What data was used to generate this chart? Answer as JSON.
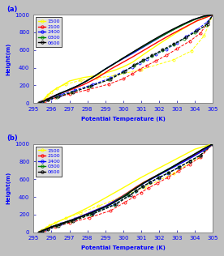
{
  "title_a": "(a)",
  "title_b": "(b)",
  "xlabel": "Potential Temperature (K)",
  "ylabel": "Height(m)",
  "xlim": [
    295,
    305
  ],
  "ylim": [
    0,
    1000
  ],
  "xticks": [
    295,
    296,
    297,
    298,
    299,
    300,
    301,
    302,
    303,
    304,
    305
  ],
  "yticks": [
    0,
    200,
    400,
    600,
    800,
    1000
  ],
  "legend_labels": [
    "1500",
    "2100",
    "2400",
    "0300",
    "0600"
  ],
  "colors": [
    "yellow",
    "red",
    "blue",
    "green",
    "black"
  ],
  "fig_bg": "#c0c0c0",
  "panel_bg": "#ffffff",
  "model_a": {
    "1500": {
      "theta": [
        295.3,
        295.35,
        295.4,
        295.45,
        295.5,
        295.55,
        295.6,
        295.65,
        295.7,
        295.8,
        295.9,
        296.0,
        296.2,
        296.5,
        297.0,
        297.8,
        298.5,
        299.0,
        299.5,
        300.0,
        300.5,
        301.2,
        302.0,
        303.0,
        304.0,
        305.0
      ],
      "height": [
        0,
        5,
        10,
        15,
        20,
        30,
        40,
        55,
        70,
        90,
        110,
        130,
        155,
        190,
        250,
        290,
        310,
        340,
        370,
        410,
        460,
        560,
        670,
        800,
        920,
        1000
      ]
    },
    "2100": {
      "theta": [
        295.3,
        295.4,
        295.5,
        295.7,
        296.0,
        296.5,
        297.2,
        297.8,
        298.3,
        298.7,
        299.0,
        299.3,
        299.7,
        300.1,
        300.5,
        301.0,
        301.5,
        302.0,
        302.7,
        303.4,
        304.1,
        304.8,
        305.0
      ],
      "height": [
        0,
        10,
        20,
        40,
        70,
        110,
        160,
        210,
        260,
        305,
        345,
        385,
        430,
        475,
        520,
        580,
        640,
        700,
        780,
        855,
        930,
        985,
        1000
      ]
    },
    "2400": {
      "theta": [
        295.3,
        295.4,
        295.6,
        295.9,
        296.3,
        296.9,
        297.5,
        298.0,
        298.4,
        298.7,
        299.0,
        299.3,
        299.7,
        300.1,
        300.5,
        301.0,
        301.5,
        302.0,
        302.6,
        303.2,
        303.8,
        304.4,
        305.0
      ],
      "height": [
        0,
        10,
        25,
        55,
        95,
        145,
        200,
        255,
        305,
        345,
        385,
        425,
        470,
        515,
        560,
        620,
        680,
        740,
        810,
        875,
        935,
        975,
        1000
      ]
    },
    "0300": {
      "theta": [
        295.3,
        295.4,
        295.6,
        295.9,
        296.3,
        296.9,
        297.5,
        298.0,
        298.4,
        298.7,
        299.0,
        299.3,
        299.6,
        299.9,
        300.3,
        300.7,
        301.2,
        301.7,
        302.3,
        302.9,
        303.5,
        304.1,
        304.7,
        305.0
      ],
      "height": [
        0,
        10,
        25,
        55,
        95,
        145,
        200,
        255,
        305,
        345,
        385,
        420,
        460,
        500,
        545,
        595,
        650,
        710,
        775,
        840,
        900,
        955,
        990,
        1000
      ]
    },
    "0600": {
      "theta": [
        295.3,
        295.4,
        295.6,
        295.9,
        296.3,
        296.9,
        297.5,
        298.0,
        298.4,
        298.7,
        299.0,
        299.3,
        299.6,
        299.9,
        300.2,
        300.6,
        301.0,
        301.5,
        302.1,
        302.7,
        303.3,
        303.9,
        304.5,
        305.0
      ],
      "height": [
        0,
        10,
        25,
        55,
        95,
        145,
        200,
        255,
        305,
        345,
        385,
        420,
        458,
        496,
        536,
        585,
        635,
        695,
        765,
        830,
        890,
        945,
        985,
        1000
      ]
    }
  },
  "obs_a": {
    "1500": {
      "theta": [
        295.3,
        295.35,
        295.4,
        295.45,
        295.5,
        295.55,
        295.6,
        295.7,
        295.8,
        296.0,
        296.3,
        296.8,
        297.6,
        298.5,
        299.5,
        301.0,
        302.8,
        303.8,
        304.5,
        305.0
      ],
      "height": [
        0,
        5,
        10,
        15,
        20,
        30,
        45,
        65,
        90,
        125,
        170,
        215,
        255,
        285,
        310,
        380,
        490,
        590,
        760,
        1000
      ]
    },
    "2100": {
      "theta": [
        295.3,
        295.4,
        295.5,
        295.6,
        295.8,
        296.2,
        297.0,
        298.0,
        299.2,
        300.0,
        300.5,
        300.9,
        301.3,
        301.8,
        302.4,
        303.0,
        303.7,
        304.3,
        305.0
      ],
      "height": [
        0,
        8,
        15,
        25,
        40,
        65,
        100,
        150,
        215,
        275,
        330,
        380,
        425,
        475,
        540,
        615,
        700,
        790,
        1000
      ]
    },
    "2400": {
      "theta": [
        295.3,
        295.4,
        295.5,
        295.7,
        296.0,
        296.5,
        297.3,
        298.3,
        299.3,
        300.0,
        300.5,
        300.9,
        301.3,
        301.8,
        302.4,
        303.0,
        303.5,
        304.1,
        304.7,
        305.0
      ],
      "height": [
        0,
        10,
        20,
        35,
        60,
        95,
        145,
        210,
        285,
        360,
        410,
        455,
        500,
        550,
        610,
        680,
        750,
        830,
        920,
        1000
      ]
    },
    "0300": {
      "theta": [
        295.3,
        295.5,
        295.8,
        296.3,
        297.1,
        298.1,
        299.2,
        300.0,
        300.6,
        301.1,
        301.6,
        302.2,
        302.8,
        303.4,
        304.0,
        304.6,
        305.0
      ],
      "height": [
        0,
        15,
        35,
        70,
        120,
        185,
        265,
        350,
        420,
        475,
        530,
        595,
        660,
        730,
        800,
        880,
        1000
      ]
    },
    "0600": {
      "theta": [
        295.3,
        295.5,
        295.8,
        296.4,
        297.2,
        298.2,
        299.3,
        300.1,
        300.6,
        301.1,
        301.6,
        302.2,
        302.8,
        303.5,
        304.1,
        304.7,
        305.0
      ],
      "height": [
        0,
        15,
        35,
        72,
        125,
        192,
        272,
        360,
        430,
        485,
        540,
        605,
        670,
        745,
        815,
        895,
        1000
      ]
    }
  },
  "model_b": {
    "1500": {
      "theta": [
        295.3,
        295.35,
        295.4,
        295.5,
        295.6,
        295.7,
        295.9,
        296.2,
        296.7,
        297.3,
        298.0,
        298.8,
        299.8,
        301.0,
        302.5,
        304.0,
        305.0
      ],
      "height": [
        0,
        5,
        12,
        22,
        35,
        52,
        75,
        105,
        150,
        205,
        275,
        365,
        480,
        620,
        780,
        940,
        1000
      ]
    },
    "2100": {
      "theta": [
        295.3,
        295.4,
        295.5,
        295.7,
        296.0,
        296.5,
        297.2,
        298.0,
        299.0,
        299.8,
        300.3,
        300.7,
        301.1,
        301.6,
        302.2,
        302.8,
        303.4,
        304.0,
        304.6,
        305.0
      ],
      "height": [
        0,
        8,
        18,
        35,
        60,
        95,
        145,
        210,
        295,
        390,
        455,
        510,
        560,
        615,
        675,
        740,
        810,
        875,
        945,
        1000
      ]
    },
    "2400": {
      "theta": [
        295.3,
        295.4,
        295.5,
        295.7,
        296.0,
        296.5,
        297.2,
        298.0,
        299.0,
        299.9,
        300.4,
        300.8,
        301.2,
        301.7,
        302.2,
        302.8,
        303.4,
        304.0,
        304.6,
        305.0
      ],
      "height": [
        0,
        8,
        18,
        35,
        60,
        95,
        145,
        210,
        295,
        395,
        460,
        510,
        560,
        615,
        670,
        735,
        800,
        868,
        940,
        1000
      ]
    },
    "0300": {
      "theta": [
        295.3,
        295.4,
        295.5,
        295.7,
        296.0,
        296.5,
        297.3,
        298.2,
        299.2,
        300.0,
        300.4,
        300.75,
        301.1,
        301.55,
        302.05,
        302.6,
        303.2,
        303.8,
        304.4,
        305.0
      ],
      "height": [
        0,
        8,
        18,
        35,
        60,
        95,
        148,
        218,
        305,
        405,
        462,
        508,
        555,
        607,
        664,
        726,
        795,
        863,
        935,
        1000
      ]
    },
    "0600": {
      "theta": [
        295.3,
        295.4,
        295.5,
        295.7,
        296.0,
        296.5,
        297.3,
        298.2,
        299.2,
        300.1,
        300.45,
        300.8,
        301.15,
        301.6,
        302.1,
        302.65,
        303.2,
        303.8,
        304.4,
        305.0
      ],
      "height": [
        0,
        8,
        18,
        35,
        60,
        95,
        148,
        218,
        305,
        408,
        463,
        510,
        557,
        610,
        666,
        728,
        795,
        863,
        935,
        1000
      ]
    }
  },
  "obs_b": {
    "1500": {
      "theta": [
        295.3,
        295.35,
        295.4,
        295.5,
        295.6,
        295.7,
        295.9,
        296.2,
        296.8,
        297.6,
        298.6,
        299.8,
        301.2,
        302.8,
        304.2,
        305.0
      ],
      "height": [
        0,
        5,
        12,
        22,
        35,
        52,
        75,
        108,
        158,
        218,
        295,
        390,
        510,
        665,
        850,
        1000
      ]
    },
    "2100": {
      "theta": [
        295.3,
        295.4,
        295.5,
        295.6,
        295.8,
        296.2,
        297.0,
        298.1,
        299.3,
        300.1,
        300.6,
        301.0,
        301.4,
        301.9,
        302.5,
        303.1,
        303.7,
        304.3,
        305.0
      ],
      "height": [
        0,
        8,
        15,
        25,
        40,
        65,
        105,
        165,
        245,
        340,
        400,
        450,
        500,
        555,
        620,
        695,
        770,
        850,
        1000
      ]
    },
    "2400": {
      "theta": [
        295.3,
        295.4,
        295.5,
        295.7,
        296.0,
        296.5,
        297.3,
        298.3,
        299.5,
        300.3,
        300.7,
        301.1,
        301.5,
        302.0,
        302.5,
        303.1,
        303.7,
        304.3,
        305.0
      ],
      "height": [
        0,
        8,
        18,
        35,
        60,
        95,
        148,
        218,
        315,
        415,
        468,
        515,
        562,
        615,
        668,
        730,
        800,
        870,
        1000
      ]
    },
    "0300": {
      "theta": [
        295.3,
        295.5,
        295.8,
        296.3,
        297.1,
        298.2,
        299.5,
        300.3,
        300.7,
        301.05,
        301.45,
        301.95,
        302.5,
        303.1,
        303.7,
        304.3,
        305.0
      ],
      "height": [
        0,
        15,
        35,
        70,
        125,
        200,
        310,
        415,
        468,
        515,
        562,
        616,
        672,
        735,
        803,
        872,
        1000
      ]
    },
    "0600": {
      "theta": [
        295.3,
        295.5,
        295.8,
        296.4,
        297.2,
        298.3,
        299.6,
        300.4,
        300.75,
        301.1,
        301.5,
        302.0,
        302.55,
        303.12,
        303.7,
        304.3,
        305.0
      ],
      "height": [
        0,
        15,
        35,
        72,
        128,
        205,
        315,
        420,
        473,
        520,
        566,
        620,
        675,
        738,
        805,
        872,
        1000
      ]
    }
  }
}
